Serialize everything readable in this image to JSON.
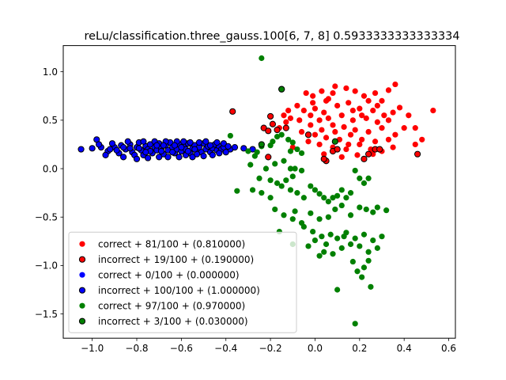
{
  "chart_data": {
    "type": "scatter",
    "title": "reLu/classification.three_gauss.100[6, 7, 8] 0.5933333333333334",
    "xlabel": "",
    "ylabel": "",
    "xlim": [
      -1.13,
      0.63
    ],
    "ylim": [
      -1.75,
      1.27
    ],
    "grid": false,
    "legend_position": "lower-left",
    "x_ticks": [
      -1.0,
      -0.8,
      -0.6,
      -0.4,
      -0.2,
      0.0,
      0.2,
      0.4,
      0.6
    ],
    "x_tick_labels": [
      "−1.0",
      "−0.8",
      "−0.6",
      "−0.4",
      "−0.2",
      "0.0",
      "0.2",
      "0.4",
      "0.6"
    ],
    "y_ticks": [
      -1.5,
      -1.0,
      -0.5,
      0.0,
      0.5,
      1.0
    ],
    "y_tick_labels": [
      "−1.5",
      "−1.0",
      "−0.5",
      "0.0",
      "0.5",
      "1.0"
    ],
    "series": [
      {
        "name": "correct + 81/100 + (0.810000)",
        "color": "#ff0000",
        "edge": false,
        "points": [
          [
            -0.04,
            0.78
          ],
          [
            -0.01,
            0.75
          ],
          [
            0.03,
            0.8
          ],
          [
            0.08,
            0.78
          ],
          [
            0.09,
            0.85
          ],
          [
            0.14,
            0.83
          ],
          [
            0.18,
            0.8
          ],
          [
            0.22,
            0.75
          ],
          [
            0.27,
            0.78
          ],
          [
            0.33,
            0.81
          ],
          [
            0.36,
            0.87
          ],
          [
            0.24,
            0.7
          ],
          [
            0.3,
            0.7
          ],
          [
            0.05,
            0.7
          ],
          [
            -0.08,
            0.65
          ],
          [
            -0.05,
            0.6
          ],
          [
            0.0,
            0.62
          ],
          [
            0.04,
            0.58
          ],
          [
            0.1,
            0.65
          ],
          [
            0.15,
            0.68
          ],
          [
            0.2,
            0.62
          ],
          [
            0.26,
            0.6
          ],
          [
            0.31,
            0.55
          ],
          [
            0.38,
            0.63
          ],
          [
            0.35,
            0.58
          ],
          [
            0.53,
            0.6
          ],
          [
            -0.12,
            0.6
          ],
          [
            -0.14,
            0.55
          ],
          [
            -0.11,
            0.52
          ],
          [
            -0.07,
            0.5
          ],
          [
            -0.02,
            0.55
          ],
          [
            0.02,
            0.5
          ],
          [
            0.06,
            0.52
          ],
          [
            0.12,
            0.55
          ],
          [
            0.17,
            0.5
          ],
          [
            0.23,
            0.52
          ],
          [
            0.28,
            0.48
          ],
          [
            0.33,
            0.5
          ],
          [
            -0.02,
            0.45
          ],
          [
            0.03,
            0.4
          ],
          [
            0.08,
            0.45
          ],
          [
            0.13,
            0.43
          ],
          [
            0.18,
            0.4
          ],
          [
            0.24,
            0.38
          ],
          [
            0.3,
            0.42
          ],
          [
            0.36,
            0.35
          ],
          [
            0.4,
            0.42
          ],
          [
            -0.06,
            0.38
          ],
          [
            0.0,
            0.35
          ],
          [
            0.05,
            0.32
          ],
          [
            0.11,
            0.3
          ],
          [
            0.16,
            0.35
          ],
          [
            0.21,
            0.3
          ],
          [
            0.27,
            0.28
          ],
          [
            0.33,
            0.3
          ],
          [
            0.48,
            0.3
          ],
          [
            -0.03,
            0.28
          ],
          [
            0.02,
            0.25
          ],
          [
            0.08,
            0.22
          ],
          [
            0.14,
            0.2
          ],
          [
            0.2,
            0.25
          ],
          [
            0.25,
            0.2
          ],
          [
            0.3,
            0.18
          ],
          [
            0.35,
            0.22
          ],
          [
            0.45,
            0.25
          ],
          [
            -0.1,
            0.22
          ],
          [
            0.04,
            0.15
          ],
          [
            0.12,
            0.12
          ],
          [
            0.19,
            0.14
          ],
          [
            0.26,
            0.15
          ],
          [
            -0.16,
            0.42
          ],
          [
            -0.13,
            0.48
          ],
          [
            0.42,
            0.55
          ],
          [
            0.45,
            0.42
          ],
          [
            0.15,
            0.25
          ],
          [
            0.06,
            0.72
          ],
          [
            -0.01,
            0.68
          ],
          [
            0.21,
            0.55
          ],
          [
            0.09,
            0.38
          ],
          [
            0.28,
            0.65
          ],
          [
            0.17,
            0.6
          ]
        ]
      },
      {
        "name": "incorrect + 19/100 + (0.190000)",
        "color": "#ff0000",
        "edge": true,
        "points": [
          [
            -0.37,
            0.59
          ],
          [
            -0.2,
            0.54
          ],
          [
            -0.23,
            0.42
          ],
          [
            -0.21,
            0.39
          ],
          [
            -0.19,
            0.46
          ],
          [
            -0.13,
            0.42
          ],
          [
            -0.21,
            0.12
          ],
          [
            -0.15,
            0.82
          ],
          [
            -0.03,
            0.35
          ],
          [
            0.05,
            0.08
          ],
          [
            0.08,
            0.18
          ],
          [
            0.1,
            0.2
          ],
          [
            0.22,
            0.1
          ],
          [
            0.24,
            0.15
          ],
          [
            0.27,
            0.2
          ],
          [
            0.29,
            0.2
          ],
          [
            0.46,
            0.15
          ],
          [
            -0.17,
            0.4
          ],
          [
            0.04,
            0.1
          ]
        ]
      },
      {
        "name": "correct + 0/100 + (0.000000)",
        "color": "#0000ff",
        "edge": false,
        "points": []
      },
      {
        "name": "incorrect + 100/100 + (1.000000)",
        "color": "#0000ff",
        "edge": true,
        "points": [
          [
            -1.05,
            0.2
          ],
          [
            -1.0,
            0.21
          ],
          [
            -0.98,
            0.3
          ],
          [
            -0.96,
            0.22
          ],
          [
            -0.93,
            0.18
          ],
          [
            -0.9,
            0.22
          ],
          [
            -0.88,
            0.16
          ],
          [
            -0.87,
            0.24
          ],
          [
            -0.85,
            0.2
          ],
          [
            -0.83,
            0.25
          ],
          [
            -0.82,
            0.17
          ],
          [
            -0.8,
            0.22
          ],
          [
            -0.79,
            0.27
          ],
          [
            -0.78,
            0.19
          ],
          [
            -0.77,
            0.14
          ],
          [
            -0.76,
            0.23
          ],
          [
            -0.75,
            0.2
          ],
          [
            -0.74,
            0.25
          ],
          [
            -0.73,
            0.16
          ],
          [
            -0.72,
            0.22
          ],
          [
            -0.71,
            0.19
          ],
          [
            -0.7,
            0.26
          ],
          [
            -0.69,
            0.21
          ],
          [
            -0.68,
            0.15
          ],
          [
            -0.67,
            0.24
          ],
          [
            -0.66,
            0.19
          ],
          [
            -0.65,
            0.27
          ],
          [
            -0.64,
            0.22
          ],
          [
            -0.63,
            0.16
          ],
          [
            -0.62,
            0.2
          ],
          [
            -0.61,
            0.25
          ],
          [
            -0.6,
            0.18
          ],
          [
            -0.59,
            0.23
          ],
          [
            -0.58,
            0.2
          ],
          [
            -0.57,
            0.26
          ],
          [
            -0.56,
            0.16
          ],
          [
            -0.55,
            0.21
          ],
          [
            -0.54,
            0.24
          ],
          [
            -0.53,
            0.19
          ],
          [
            -0.52,
            0.22
          ],
          [
            -0.51,
            0.17
          ],
          [
            -0.5,
            0.26
          ],
          [
            -0.49,
            0.2
          ],
          [
            -0.48,
            0.23
          ],
          [
            -0.47,
            0.17
          ],
          [
            -0.46,
            0.21
          ],
          [
            -0.45,
            0.25
          ],
          [
            -0.44,
            0.19
          ],
          [
            -0.43,
            0.23
          ],
          [
            -0.42,
            0.2
          ],
          [
            -0.41,
            0.22
          ],
          [
            -0.38,
            0.2
          ],
          [
            -0.36,
            0.22
          ],
          [
            -0.32,
            0.21
          ],
          [
            -0.28,
            0.2
          ],
          [
            -0.94,
            0.14
          ],
          [
            -0.91,
            0.26
          ],
          [
            -0.86,
            0.12
          ],
          [
            -0.84,
            0.28
          ],
          [
            -0.81,
            0.14
          ],
          [
            -0.8,
            0.1
          ],
          [
            -0.77,
            0.28
          ],
          [
            -0.75,
            0.11
          ],
          [
            -0.74,
            0.18
          ],
          [
            -0.72,
            0.28
          ],
          [
            -0.7,
            0.12
          ],
          [
            -0.69,
            0.18
          ],
          [
            -0.67,
            0.28
          ],
          [
            -0.66,
            0.12
          ],
          [
            -0.64,
            0.17
          ],
          [
            -0.62,
            0.28
          ],
          [
            -0.61,
            0.12
          ],
          [
            -0.59,
            0.28
          ],
          [
            -0.58,
            0.14
          ],
          [
            -0.56,
            0.27
          ],
          [
            -0.55,
            0.12
          ],
          [
            -0.53,
            0.15
          ],
          [
            -0.52,
            0.27
          ],
          [
            -0.5,
            0.13
          ],
          [
            -0.49,
            0.28
          ],
          [
            -0.47,
            0.24
          ],
          [
            -0.46,
            0.14
          ],
          [
            -0.44,
            0.27
          ],
          [
            -0.43,
            0.16
          ],
          [
            -0.41,
            0.26
          ],
          [
            -0.4,
            0.17
          ],
          [
            -0.39,
            0.23
          ],
          [
            -0.97,
            0.25
          ],
          [
            -0.92,
            0.2
          ],
          [
            -0.89,
            0.19
          ],
          [
            -0.86,
            0.22
          ],
          [
            -0.83,
            0.21
          ],
          [
            -0.79,
            0.21
          ],
          [
            -0.76,
            0.17
          ],
          [
            -0.71,
            0.24
          ],
          [
            -0.68,
            0.24
          ],
          [
            -0.63,
            0.24
          ],
          [
            -0.6,
            0.22
          ],
          [
            -0.57,
            0.18
          ],
          [
            -0.54,
            0.2
          ]
        ]
      },
      {
        "name": "correct + 97/100 + (0.970000)",
        "color": "#008000",
        "edge": false,
        "points": [
          [
            -0.24,
            1.14
          ],
          [
            -0.38,
            0.34
          ],
          [
            -0.3,
            0.18
          ],
          [
            -0.29,
            0.04
          ],
          [
            -0.27,
            0.13
          ],
          [
            -0.26,
            0.17
          ],
          [
            -0.24,
            0.23
          ],
          [
            -0.2,
            0.24
          ],
          [
            -0.19,
            0.28
          ],
          [
            -0.17,
            0.33
          ],
          [
            -0.15,
            0.35
          ],
          [
            -0.12,
            0.3
          ],
          [
            -0.1,
            0.27
          ],
          [
            -0.08,
            0.2
          ],
          [
            -0.06,
            0.16
          ],
          [
            -0.11,
            0.18
          ],
          [
            -0.14,
            0.08
          ],
          [
            -0.18,
            0.05
          ],
          [
            -0.22,
            0.0
          ],
          [
            -0.11,
            0.0
          ],
          [
            -0.09,
            0.0
          ],
          [
            -0.06,
            -0.02
          ],
          [
            -0.1,
            -0.08
          ],
          [
            -0.13,
            -0.12
          ],
          [
            -0.17,
            -0.15
          ],
          [
            -0.2,
            -0.12
          ],
          [
            -0.25,
            -0.1
          ],
          [
            -0.28,
            -0.22
          ],
          [
            -0.24,
            -0.25
          ],
          [
            -0.2,
            -0.3
          ],
          [
            -0.15,
            -0.18
          ],
          [
            -0.11,
            -0.22
          ],
          [
            -0.08,
            -0.25
          ],
          [
            -0.05,
            -0.3
          ],
          [
            -0.02,
            -0.18
          ],
          [
            0.0,
            -0.22
          ],
          [
            0.02,
            -0.26
          ],
          [
            0.04,
            -0.3
          ],
          [
            0.06,
            -0.34
          ],
          [
            0.08,
            -0.3
          ],
          [
            0.1,
            -0.28
          ],
          [
            0.12,
            -0.22
          ],
          [
            0.14,
            -0.3
          ],
          [
            0.16,
            -0.25
          ],
          [
            0.18,
            -0.02
          ],
          [
            0.2,
            -0.1
          ],
          [
            0.22,
            -0.15
          ],
          [
            0.24,
            -0.1
          ],
          [
            -0.18,
            -0.42
          ],
          [
            -0.14,
            -0.48
          ],
          [
            -0.1,
            -0.52
          ],
          [
            -0.06,
            -0.56
          ],
          [
            -0.02,
            -0.46
          ],
          [
            0.02,
            -0.52
          ],
          [
            0.06,
            -0.5
          ],
          [
            0.09,
            -0.42
          ],
          [
            0.12,
            -0.38
          ],
          [
            0.16,
            -0.48
          ],
          [
            0.2,
            -0.4
          ],
          [
            0.23,
            -0.42
          ],
          [
            0.26,
            -0.45
          ],
          [
            0.28,
            -0.4
          ],
          [
            0.32,
            -0.43
          ],
          [
            -0.05,
            -0.6
          ],
          [
            -0.01,
            -0.65
          ],
          [
            0.03,
            -0.7
          ],
          [
            0.07,
            -0.68
          ],
          [
            0.1,
            -0.72
          ],
          [
            0.14,
            -0.66
          ],
          [
            0.18,
            -0.72
          ],
          [
            0.22,
            -0.68
          ],
          [
            0.26,
            -0.74
          ],
          [
            0.3,
            -0.7
          ],
          [
            -0.03,
            -0.8
          ],
          [
            0.0,
            -0.74
          ],
          [
            0.04,
            -0.86
          ],
          [
            0.08,
            -0.88
          ],
          [
            0.12,
            -0.82
          ],
          [
            0.16,
            -0.78
          ],
          [
            0.2,
            -0.8
          ],
          [
            0.24,
            -0.86
          ],
          [
            0.28,
            -0.82
          ],
          [
            -0.1,
            -0.78
          ],
          [
            0.02,
            -0.9
          ],
          [
            0.17,
            -0.96
          ],
          [
            0.19,
            -1.06
          ],
          [
            0.21,
            -1.12
          ],
          [
            0.1,
            -1.25
          ],
          [
            0.22,
            -1.02
          ],
          [
            0.25,
            -1.22
          ],
          [
            0.18,
            -1.6
          ],
          [
            -0.35,
            -0.23
          ],
          [
            -0.09,
            -0.44
          ],
          [
            0.24,
            -0.95
          ],
          [
            0.13,
            -0.7
          ],
          [
            0.05,
            -0.78
          ],
          [
            -0.16,
            -0.65
          ]
        ]
      },
      {
        "name": "incorrect + 3/100 + (0.030000)",
        "color": "#008000",
        "edge": true,
        "points": [
          [
            -0.15,
            0.82
          ],
          [
            -0.24,
            0.25
          ],
          [
            0.09,
            0.28
          ]
        ]
      }
    ]
  }
}
